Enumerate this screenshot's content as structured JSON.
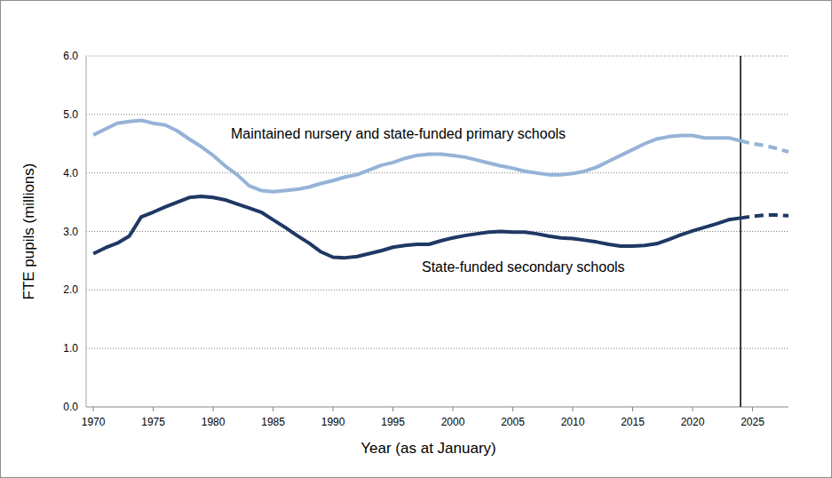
{
  "chart_data": {
    "type": "line",
    "x_label": "Year (as at January)",
    "y_label": "FTE pupils (millions)",
    "x": [
      1970,
      1971,
      1972,
      1973,
      1974,
      1975,
      1976,
      1977,
      1978,
      1979,
      1980,
      1981,
      1982,
      1983,
      1984,
      1985,
      1986,
      1987,
      1988,
      1989,
      1990,
      1991,
      1992,
      1993,
      1994,
      1995,
      1996,
      1997,
      1998,
      1999,
      2000,
      2001,
      2002,
      2003,
      2004,
      2005,
      2006,
      2007,
      2008,
      2009,
      2010,
      2011,
      2012,
      2013,
      2014,
      2015,
      2016,
      2017,
      2018,
      2019,
      2020,
      2021,
      2022,
      2023,
      2024,
      2025,
      2026,
      2027,
      2028
    ],
    "series": [
      {
        "name": "Maintained nursery and state-funded primary schools",
        "color": "#95b3d7",
        "values": [
          4.65,
          4.75,
          4.85,
          4.88,
          4.9,
          4.85,
          4.82,
          4.72,
          4.58,
          4.45,
          4.3,
          4.12,
          3.97,
          3.78,
          3.7,
          3.68,
          3.7,
          3.72,
          3.76,
          3.82,
          3.87,
          3.93,
          3.97,
          4.05,
          4.13,
          4.18,
          4.25,
          4.3,
          4.32,
          4.32,
          4.3,
          4.27,
          4.22,
          4.17,
          4.12,
          4.08,
          4.03,
          4.0,
          3.97,
          3.97,
          3.99,
          4.03,
          4.1,
          4.2,
          4.3,
          4.4,
          4.5,
          4.58,
          4.62,
          4.64,
          4.64,
          4.6,
          4.6,
          4.6,
          4.55,
          4.5,
          4.47,
          4.42,
          4.36
        ]
      },
      {
        "name": "State-funded secondary schools",
        "color": "#1f3864",
        "values": [
          2.62,
          2.72,
          2.8,
          2.92,
          3.25,
          3.33,
          3.42,
          3.5,
          3.58,
          3.6,
          3.58,
          3.54,
          3.47,
          3.4,
          3.33,
          3.2,
          3.07,
          2.93,
          2.8,
          2.65,
          2.56,
          2.55,
          2.57,
          2.62,
          2.67,
          2.73,
          2.76,
          2.78,
          2.78,
          2.84,
          2.89,
          2.93,
          2.96,
          2.99,
          3.0,
          2.99,
          2.99,
          2.96,
          2.92,
          2.89,
          2.88,
          2.85,
          2.82,
          2.78,
          2.75,
          2.75,
          2.76,
          2.79,
          2.86,
          2.94,
          3.01,
          3.07,
          3.13,
          3.2,
          3.23,
          3.26,
          3.28,
          3.28,
          3.27
        ]
      }
    ],
    "annotations": [
      {
        "type": "vline",
        "x": 2024,
        "color": "#000000"
      }
    ],
    "xlim": [
      1969.4,
      2028
    ],
    "xticks": [
      1970,
      1975,
      1980,
      1985,
      1990,
      1995,
      2000,
      2005,
      2010,
      2015,
      2020,
      2025
    ],
    "ylim": [
      0,
      6
    ],
    "yticks": [
      {
        "value": 0,
        "label": "0.0"
      },
      {
        "value": 1,
        "label": "1.0"
      },
      {
        "value": 2,
        "label": "2.0"
      },
      {
        "value": 3,
        "label": "3.0"
      },
      {
        "value": 4,
        "label": "4.0"
      },
      {
        "value": 5,
        "label": "5.0"
      },
      {
        "value": 6,
        "label": "6.0"
      }
    ],
    "grid": true
  }
}
